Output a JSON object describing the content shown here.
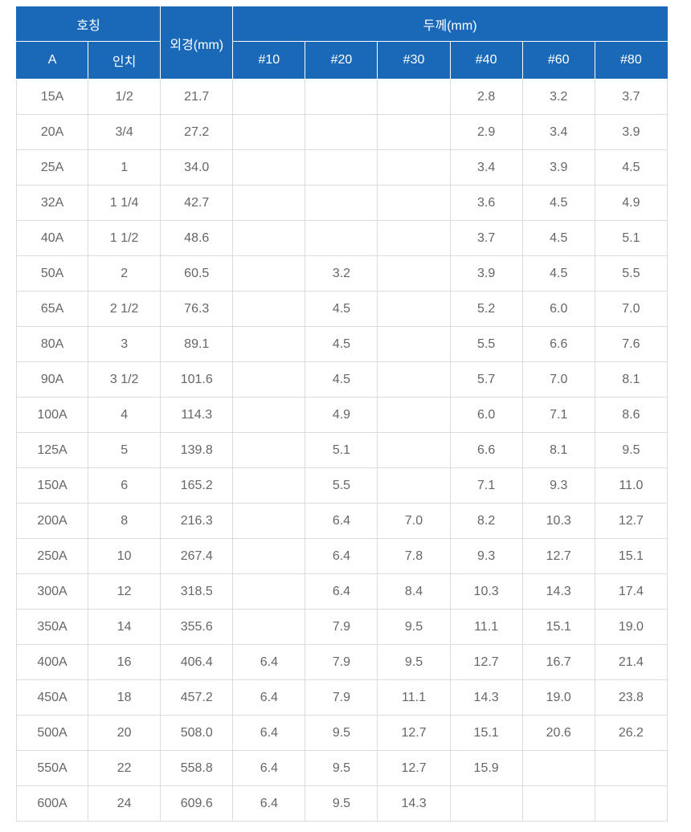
{
  "table": {
    "header": {
      "nominal": "호칭",
      "outer_diameter": "외경(mm)",
      "thickness": "두께(mm)",
      "col_a": "A",
      "col_inch": "인치",
      "schedules": [
        "#10",
        "#20",
        "#30",
        "#40",
        "#60",
        "#80"
      ]
    },
    "rows": [
      [
        "15A",
        "1/2",
        "21.7",
        "",
        "",
        "",
        "2.8",
        "3.2",
        "3.7"
      ],
      [
        "20A",
        "3/4",
        "27.2",
        "",
        "",
        "",
        "2.9",
        "3.4",
        "3.9"
      ],
      [
        "25A",
        "1",
        "34.0",
        "",
        "",
        "",
        "3.4",
        "3.9",
        "4.5"
      ],
      [
        "32A",
        "1 1/4",
        "42.7",
        "",
        "",
        "",
        "3.6",
        "4.5",
        "4.9"
      ],
      [
        "40A",
        "1 1/2",
        "48.6",
        "",
        "",
        "",
        "3.7",
        "4.5",
        "5.1"
      ],
      [
        "50A",
        "2",
        "60.5",
        "",
        "3.2",
        "",
        "3.9",
        "4.5",
        "5.5"
      ],
      [
        "65A",
        "2 1/2",
        "76.3",
        "",
        "4.5",
        "",
        "5.2",
        "6.0",
        "7.0"
      ],
      [
        "80A",
        "3",
        "89.1",
        "",
        "4.5",
        "",
        "5.5",
        "6.6",
        "7.6"
      ],
      [
        "90A",
        "3 1/2",
        "101.6",
        "",
        "4.5",
        "",
        "5.7",
        "7.0",
        "8.1"
      ],
      [
        "100A",
        "4",
        "114.3",
        "",
        "4.9",
        "",
        "6.0",
        "7.1",
        "8.6"
      ],
      [
        "125A",
        "5",
        "139.8",
        "",
        "5.1",
        "",
        "6.6",
        "8.1",
        "9.5"
      ],
      [
        "150A",
        "6",
        "165.2",
        "",
        "5.5",
        "",
        "7.1",
        "9.3",
        "11.0"
      ],
      [
        "200A",
        "8",
        "216.3",
        "",
        "6.4",
        "7.0",
        "8.2",
        "10.3",
        "12.7"
      ],
      [
        "250A",
        "10",
        "267.4",
        "",
        "6.4",
        "7.8",
        "9.3",
        "12.7",
        "15.1"
      ],
      [
        "300A",
        "12",
        "318.5",
        "",
        "6.4",
        "8.4",
        "10.3",
        "14.3",
        "17.4"
      ],
      [
        "350A",
        "14",
        "355.6",
        "",
        "7.9",
        "9.5",
        "11.1",
        "15.1",
        "19.0"
      ],
      [
        "400A",
        "16",
        "406.4",
        "6.4",
        "7.9",
        "9.5",
        "12.7",
        "16.7",
        "21.4"
      ],
      [
        "450A",
        "18",
        "457.2",
        "6.4",
        "7.9",
        "11.1",
        "14.3",
        "19.0",
        "23.8"
      ],
      [
        "500A",
        "20",
        "508.0",
        "6.4",
        "9.5",
        "12.7",
        "15.1",
        "20.6",
        "26.2"
      ],
      [
        "550A",
        "22",
        "558.8",
        "6.4",
        "9.5",
        "12.7",
        "15.9",
        "",
        ""
      ],
      [
        "600A",
        "24",
        "609.6",
        "6.4",
        "9.5",
        "14.3",
        "",
        "",
        ""
      ]
    ]
  },
  "colors": {
    "header_bg": "#1a69b8",
    "header_text": "#ffffff",
    "cell_text": "#666666",
    "grid_line": "#dcdcdc"
  }
}
